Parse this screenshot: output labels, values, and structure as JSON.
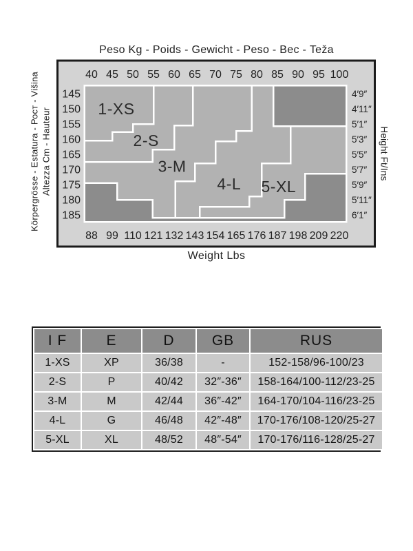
{
  "colors": {
    "page_bg": "#ffffff",
    "box_bg": "#d3d3d3",
    "box_border": "#1b1b1b",
    "region_fill": "#b2b2b2",
    "out_of_range_fill": "#8c8c8c",
    "boundary_line": "#ffffff",
    "text": "#222222",
    "region_label_text": "#2b2b2b",
    "table_header_bg": "#8c8c8c",
    "table_row_bg": "#c9c9c9",
    "table_grid": "#ffffff"
  },
  "chart_data": [
    {
      "type": "area",
      "title": "Peso Kg - Poids - Gewicht - Peso - Вес - Teža",
      "axis_titles": {
        "bottom": "Weight Lbs",
        "left_inner": "Altezza Cm - Hauteur",
        "left_outer": "Körpergrösse - Estatura - Рост - Višina",
        "right": "Height Ft/Ins"
      },
      "x_ticks_kg": [
        40,
        45,
        50,
        55,
        60,
        65,
        70,
        75,
        80,
        85,
        90,
        95,
        100
      ],
      "x_ticks_lbs": [
        88,
        99,
        110,
        121,
        132,
        143,
        154,
        165,
        176,
        187,
        198,
        209,
        220
      ],
      "y_ticks_cm": [
        145,
        150,
        155,
        160,
        165,
        170,
        175,
        180,
        185
      ],
      "y_ticks_ftin": [
        "4′9″",
        "4′11″",
        "5′1″",
        "5′3″",
        "5′5″",
        "5′7″",
        "5′9″",
        "5′11″",
        "6′1″"
      ],
      "xlim_kg": [
        38.3,
        101.7
      ],
      "ylim_cm": [
        142.3,
        187.3
      ],
      "grid": false,
      "series": [
        {
          "name": "1-XS",
          "kind": "size",
          "label_at": [
            46,
            150
          ],
          "polygon": [
            [
              38.3,
              142.3
            ],
            [
              55,
              142.3
            ],
            [
              55,
              155
            ],
            [
              50,
              155
            ],
            [
              50,
              157.7
            ],
            [
              45,
              157.7
            ],
            [
              45,
              160.5
            ],
            [
              38.3,
              160.5
            ]
          ]
        },
        {
          "name": "2-S",
          "kind": "size",
          "label_at": [
            53.2,
            160.4
          ],
          "polygon": [
            [
              55,
              142.3
            ],
            [
              64.5,
              142.3
            ],
            [
              64.5,
              155.5
            ],
            [
              60,
              155.5
            ],
            [
              60,
              163.4
            ],
            [
              54.8,
              163.4
            ],
            [
              54.8,
              167.5
            ],
            [
              38.3,
              167.5
            ],
            [
              38.3,
              160.5
            ],
            [
              45,
              160.5
            ],
            [
              45,
              157.7
            ],
            [
              50,
              157.7
            ],
            [
              50,
              155
            ],
            [
              55,
              155
            ]
          ]
        },
        {
          "name": "3-M",
          "kind": "size",
          "label_at": [
            59.5,
            169
          ],
          "polygon": [
            [
              64.5,
              142.3
            ],
            [
              78.8,
              142.3
            ],
            [
              78.8,
              157.3
            ],
            [
              75,
              157.3
            ],
            [
              75,
              160.7
            ],
            [
              70,
              160.7
            ],
            [
              70,
              168
            ],
            [
              65,
              168
            ],
            [
              65,
              173.9
            ],
            [
              60.3,
              173.9
            ],
            [
              60.3,
              185.9
            ],
            [
              54.8,
              185.9
            ],
            [
              54.8,
              180
            ],
            [
              46.2,
              180
            ],
            [
              46.2,
              174.5
            ],
            [
              38.3,
              174.5
            ],
            [
              38.3,
              167.5
            ],
            [
              54.8,
              167.5
            ],
            [
              54.8,
              163.4
            ],
            [
              60,
              163.4
            ],
            [
              60,
              155.5
            ],
            [
              64.5,
              155.5
            ]
          ]
        },
        {
          "name": "4-L",
          "kind": "size",
          "label_at": [
            73.3,
            174.8
          ],
          "polygon": [
            [
              78.8,
              142.3
            ],
            [
              84,
              142.3
            ],
            [
              84,
              155.7
            ],
            [
              88.2,
              155.7
            ],
            [
              88.2,
              168
            ],
            [
              81.2,
              168
            ],
            [
              81.2,
              178.9
            ],
            [
              78.2,
              178.9
            ],
            [
              78.2,
              182.3
            ],
            [
              66.2,
              182.3
            ],
            [
              66.2,
              185.9
            ],
            [
              60.3,
              185.9
            ],
            [
              60.3,
              173.9
            ],
            [
              65,
              173.9
            ],
            [
              65,
              168
            ],
            [
              70,
              168
            ],
            [
              70,
              160.7
            ],
            [
              75,
              160.7
            ],
            [
              75,
              157.3
            ],
            [
              78.8,
              157.3
            ]
          ]
        },
        {
          "name": "5-XL",
          "kind": "size",
          "label_at": [
            85.3,
            175.7
          ],
          "polygon": [
            [
              88.2,
              155.7
            ],
            [
              101.7,
              155.7
            ],
            [
              101.7,
              171.4
            ],
            [
              91.7,
              171.4
            ],
            [
              91.7,
              180
            ],
            [
              86.7,
              180
            ],
            [
              86.7,
              185.9
            ],
            [
              66.2,
              185.9
            ],
            [
              66.2,
              182.3
            ],
            [
              78.2,
              182.3
            ],
            [
              78.2,
              178.9
            ],
            [
              81.2,
              178.9
            ],
            [
              81.2,
              168
            ],
            [
              88.2,
              168
            ]
          ]
        },
        {
          "name": "",
          "kind": "out-of-range",
          "polygon": [
            [
              84,
              142.3
            ],
            [
              101.7,
              142.3
            ],
            [
              101.7,
              155.7
            ],
            [
              84,
              155.7
            ]
          ]
        },
        {
          "name": "",
          "kind": "out-of-range",
          "polygon": [
            [
              38.3,
              174.5
            ],
            [
              46.2,
              174.5
            ],
            [
              46.2,
              180
            ],
            [
              54.8,
              180
            ],
            [
              54.8,
              185.9
            ],
            [
              86.7,
              185.9
            ],
            [
              86.7,
              180
            ],
            [
              91.7,
              180
            ],
            [
              91.7,
              171.4
            ],
            [
              101.7,
              171.4
            ],
            [
              101.7,
              187.3
            ],
            [
              38.3,
              187.3
            ]
          ]
        }
      ]
    },
    {
      "type": "table",
      "columns": [
        "I F",
        "E",
        "D",
        "GB",
        "RUS"
      ],
      "rows": [
        [
          "1-XS",
          "XP",
          "36/38",
          "-",
          "152-158/96-100/23"
        ],
        [
          "2-S",
          "P",
          "40/42",
          "32″-36″",
          "158-164/100-112/23-25"
        ],
        [
          "3-M",
          "M",
          "42/44",
          "36″-42″",
          "164-170/104-116/23-25"
        ],
        [
          "4-L",
          "G",
          "46/48",
          "42″-48″",
          "170-176/108-120/25-27"
        ],
        [
          "5-XL",
          "XL",
          "48/52",
          "48″-54″",
          "170-176/116-128/25-27"
        ]
      ]
    }
  ]
}
